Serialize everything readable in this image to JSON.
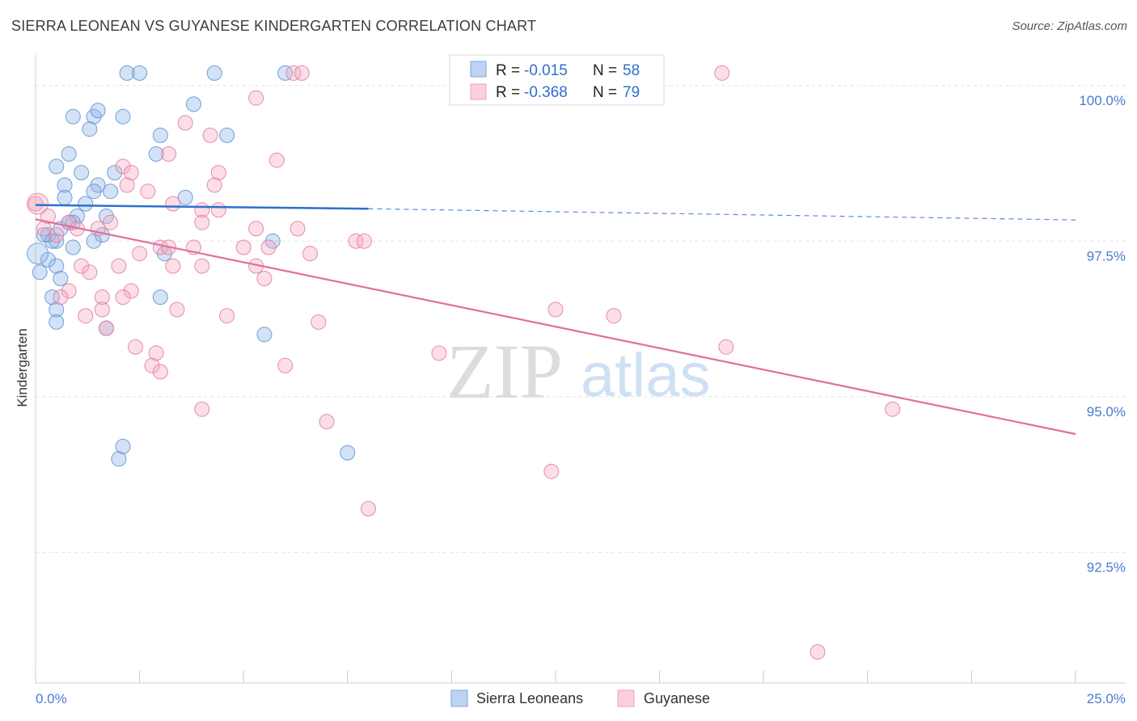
{
  "chart_data": {
    "type": "scatter",
    "title": "SIERRA LEONEAN VS GUYANESE KINDERGARTEN CORRELATION CHART",
    "source": "Source: ZipAtlas.com",
    "xlabel": "",
    "ylabel": "Kindergarten",
    "xlim": [
      0,
      25
    ],
    "ylim": [
      90.4,
      100.4
    ],
    "x_ticks_labeled": [
      "0.0%",
      "25.0%"
    ],
    "y_ticks": [
      {
        "value": 100.0,
        "label": "100.0%"
      },
      {
        "value": 97.5,
        "label": "97.5%"
      },
      {
        "value": 95.0,
        "label": "95.0%"
      },
      {
        "value": 92.5,
        "label": "92.5%"
      }
    ],
    "grid": true,
    "legend": {
      "position": "top-center",
      "entries": [
        {
          "r_label": "R = ",
          "r_value": "-0.015",
          "n_label": "N = ",
          "n_value": "58",
          "color": "#8fb4e8"
        },
        {
          "r_label": "R = ",
          "r_value": "-0.368",
          "n_label": "N = ",
          "n_value": "79",
          "color": "#f4a9c0"
        }
      ]
    },
    "bottom_legend": [
      "Sierra Leoneans",
      "Guyanese"
    ],
    "watermark": {
      "zip": "ZIP",
      "atlas": "atlas"
    },
    "series": [
      {
        "name": "Sierra Leoneans",
        "color": "#8fb4e8",
        "stroke": "#5b8fd6",
        "trend": {
          "x0": 0,
          "y0": 98.08,
          "x1": 8.0,
          "y1": 98.02,
          "dash_x1": 25.0,
          "dash_y1": 97.84,
          "color": "#2e6fd0"
        },
        "points": [
          [
            2.2,
            100.2
          ],
          [
            2.5,
            100.2
          ],
          [
            4.3,
            100.2
          ],
          [
            6.0,
            100.2
          ],
          [
            3.8,
            99.7
          ],
          [
            2.1,
            99.5
          ],
          [
            1.4,
            99.5
          ],
          [
            1.5,
            99.6
          ],
          [
            0.9,
            99.5
          ],
          [
            1.3,
            99.3
          ],
          [
            3.0,
            99.2
          ],
          [
            4.6,
            99.2
          ],
          [
            0.8,
            98.9
          ],
          [
            2.9,
            98.9
          ],
          [
            0.5,
            98.7
          ],
          [
            1.1,
            98.6
          ],
          [
            1.9,
            98.6
          ],
          [
            0.7,
            98.4
          ],
          [
            1.5,
            98.4
          ],
          [
            1.4,
            98.3
          ],
          [
            1.8,
            98.3
          ],
          [
            0.7,
            98.2
          ],
          [
            3.6,
            98.2
          ],
          [
            1.2,
            98.1
          ],
          [
            1.0,
            97.9
          ],
          [
            1.7,
            97.9
          ],
          [
            0.8,
            97.8
          ],
          [
            0.9,
            97.8
          ],
          [
            0.6,
            97.7
          ],
          [
            0.3,
            97.6
          ],
          [
            1.6,
            97.6
          ],
          [
            0.2,
            97.6
          ],
          [
            0.5,
            97.5
          ],
          [
            0.4,
            97.5
          ],
          [
            1.4,
            97.5
          ],
          [
            5.7,
            97.5
          ],
          [
            0.9,
            97.4
          ],
          [
            3.1,
            97.3
          ],
          [
            0.3,
            97.2
          ],
          [
            0.5,
            97.1
          ],
          [
            0.1,
            97.0
          ],
          [
            0.6,
            96.9
          ],
          [
            0.4,
            96.6
          ],
          [
            3.0,
            96.6
          ],
          [
            0.5,
            96.4
          ],
          [
            0.5,
            96.2
          ],
          [
            1.7,
            96.1
          ],
          [
            5.5,
            96.0
          ],
          [
            2.1,
            94.2
          ],
          [
            2.0,
            94.0
          ],
          [
            7.5,
            94.1
          ]
        ]
      },
      {
        "name": "Guyanese",
        "color": "#f4a9c0",
        "stroke": "#e07a9c",
        "trend": {
          "x0": 0,
          "y0": 97.85,
          "x1": 25.0,
          "y1": 94.4,
          "color": "#e0709a"
        },
        "points": [
          [
            6.2,
            100.2
          ],
          [
            6.4,
            100.2
          ],
          [
            16.5,
            100.2
          ],
          [
            5.3,
            99.8
          ],
          [
            3.6,
            99.4
          ],
          [
            4.2,
            99.2
          ],
          [
            3.2,
            98.9
          ],
          [
            5.8,
            98.8
          ],
          [
            2.1,
            98.7
          ],
          [
            2.3,
            98.6
          ],
          [
            4.4,
            98.6
          ],
          [
            4.3,
            98.4
          ],
          [
            2.2,
            98.4
          ],
          [
            2.7,
            98.3
          ],
          [
            3.3,
            98.1
          ],
          [
            4.0,
            98.0
          ],
          [
            4.4,
            98.0
          ],
          [
            0.0,
            98.1
          ],
          [
            0.3,
            97.9
          ],
          [
            0.8,
            97.8
          ],
          [
            1.8,
            97.8
          ],
          [
            4.0,
            97.8
          ],
          [
            5.3,
            97.7
          ],
          [
            6.3,
            97.7
          ],
          [
            1.5,
            97.7
          ],
          [
            0.5,
            97.6
          ],
          [
            5.0,
            97.4
          ],
          [
            5.6,
            97.4
          ],
          [
            3.0,
            97.4
          ],
          [
            3.2,
            97.4
          ],
          [
            2.5,
            97.3
          ],
          [
            3.8,
            97.4
          ],
          [
            6.6,
            97.3
          ],
          [
            7.7,
            97.5
          ],
          [
            7.9,
            97.5
          ],
          [
            1.1,
            97.1
          ],
          [
            2.0,
            97.1
          ],
          [
            3.3,
            97.1
          ],
          [
            4.0,
            97.1
          ],
          [
            5.3,
            97.1
          ],
          [
            1.3,
            97.0
          ],
          [
            5.5,
            96.9
          ],
          [
            0.8,
            96.7
          ],
          [
            2.3,
            96.7
          ],
          [
            0.6,
            96.6
          ],
          [
            1.6,
            96.6
          ],
          [
            2.1,
            96.6
          ],
          [
            1.6,
            96.4
          ],
          [
            3.4,
            96.4
          ],
          [
            4.6,
            96.3
          ],
          [
            12.5,
            96.4
          ],
          [
            13.9,
            96.3
          ],
          [
            1.2,
            96.3
          ],
          [
            6.8,
            96.2
          ],
          [
            1.7,
            96.1
          ],
          [
            2.4,
            95.8
          ],
          [
            2.9,
            95.7
          ],
          [
            16.6,
            95.8
          ],
          [
            9.7,
            95.7
          ],
          [
            2.8,
            95.5
          ],
          [
            6.0,
            95.5
          ],
          [
            3.0,
            95.4
          ],
          [
            4.0,
            94.8
          ],
          [
            7.0,
            94.6
          ],
          [
            20.6,
            94.8
          ],
          [
            12.4,
            93.8
          ],
          [
            8.0,
            93.2
          ],
          [
            18.8,
            90.9
          ],
          [
            0.2,
            97.7
          ],
          [
            1.0,
            97.7
          ]
        ]
      }
    ]
  }
}
